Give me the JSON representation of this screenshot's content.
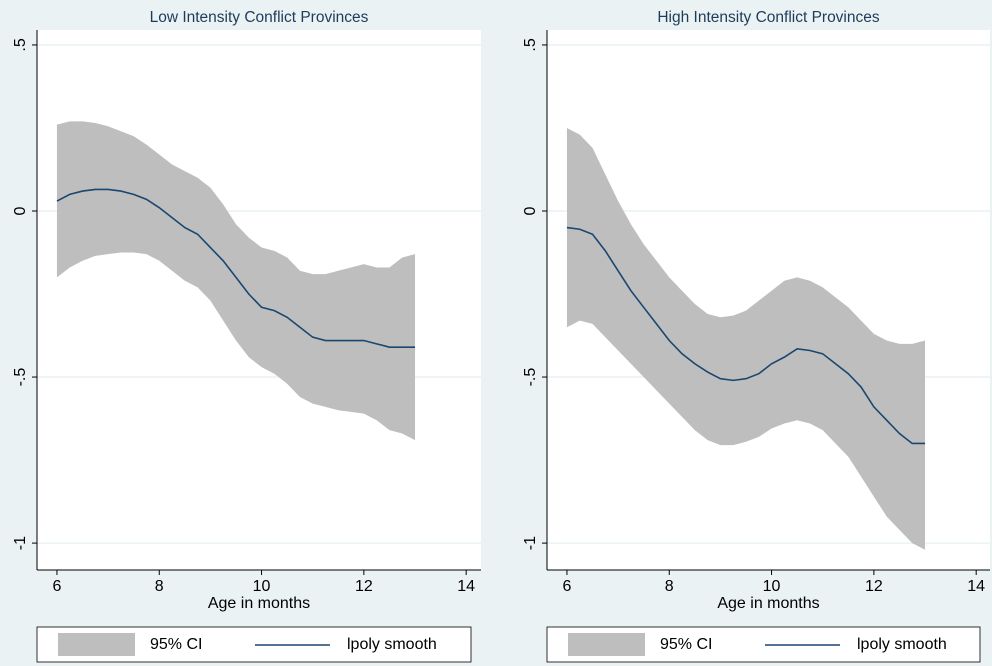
{
  "chart_data": [
    {
      "type": "line",
      "title": "Low Intensity Conflict Provinces",
      "x_label": "Age in months",
      "x": [
        6,
        6.25,
        6.5,
        6.75,
        7,
        7.25,
        7.5,
        7.75,
        8,
        8.25,
        8.5,
        8.75,
        9,
        9.25,
        9.5,
        9.75,
        10,
        10.25,
        10.5,
        10.75,
        11,
        11.25,
        11.5,
        11.75,
        12,
        12.25,
        12.5,
        12.75,
        13
      ],
      "series": [
        {
          "name": "95% CI",
          "color": "#bebebe",
          "upper": [
            0.26,
            0.27,
            0.27,
            0.265,
            0.255,
            0.24,
            0.225,
            0.2,
            0.17,
            0.14,
            0.12,
            0.1,
            0.07,
            0.02,
            -0.04,
            -0.08,
            -0.11,
            -0.12,
            -0.14,
            -0.18,
            -0.19,
            -0.19,
            -0.18,
            -0.17,
            -0.16,
            -0.17,
            -0.17,
            -0.14,
            -0.13
          ],
          "lower": [
            -0.2,
            -0.17,
            -0.15,
            -0.135,
            -0.13,
            -0.125,
            -0.125,
            -0.13,
            -0.15,
            -0.18,
            -0.21,
            -0.23,
            -0.27,
            -0.33,
            -0.39,
            -0.44,
            -0.47,
            -0.49,
            -0.52,
            -0.56,
            -0.58,
            -0.59,
            -0.6,
            -0.605,
            -0.61,
            -0.63,
            -0.66,
            -0.67,
            -0.69
          ]
        },
        {
          "name": "lpoly smooth",
          "color": "#1a476f",
          "values": [
            0.03,
            0.05,
            0.06,
            0.065,
            0.065,
            0.06,
            0.05,
            0.035,
            0.01,
            -0.02,
            -0.05,
            -0.07,
            -0.11,
            -0.15,
            -0.2,
            -0.25,
            -0.29,
            -0.3,
            -0.32,
            -0.35,
            -0.38,
            -0.39,
            -0.39,
            -0.39,
            -0.39,
            -0.4,
            -0.41,
            -0.41,
            -0.41
          ]
        }
      ],
      "xlim": [
        5.61,
        14.29
      ],
      "xticks": [
        6,
        8,
        10,
        12,
        14
      ],
      "ylim": [
        -1.081,
        0.545
      ],
      "yticks": [
        {
          "value": 0.5,
          "label": ".5"
        },
        0,
        {
          "value": -0.5,
          "label": "-.5"
        },
        -1
      ],
      "grid": true
    },
    {
      "type": "line",
      "title": "High  Intensity Conflict Provinces",
      "x_label": "Age in months",
      "x": [
        6,
        6.25,
        6.5,
        6.75,
        7,
        7.25,
        7.5,
        7.75,
        8,
        8.25,
        8.5,
        8.75,
        9,
        9.25,
        9.5,
        9.75,
        10,
        10.25,
        10.5,
        10.75,
        11,
        11.25,
        11.5,
        11.75,
        12,
        12.25,
        12.5,
        12.75,
        13
      ],
      "series": [
        {
          "name": "95% CI",
          "color": "#bebebe",
          "upper": [
            0.25,
            0.23,
            0.19,
            0.11,
            0.03,
            -0.04,
            -0.1,
            -0.15,
            -0.2,
            -0.24,
            -0.28,
            -0.31,
            -0.32,
            -0.315,
            -0.3,
            -0.27,
            -0.24,
            -0.21,
            -0.2,
            -0.21,
            -0.23,
            -0.26,
            -0.29,
            -0.33,
            -0.37,
            -0.39,
            -0.4,
            -0.4,
            -0.39
          ],
          "lower": [
            -0.35,
            -0.33,
            -0.34,
            -0.38,
            -0.42,
            -0.46,
            -0.5,
            -0.54,
            -0.58,
            -0.62,
            -0.66,
            -0.69,
            -0.705,
            -0.705,
            -0.695,
            -0.68,
            -0.655,
            -0.64,
            -0.63,
            -0.64,
            -0.66,
            -0.7,
            -0.74,
            -0.8,
            -0.86,
            -0.92,
            -0.96,
            -1,
            -1.02
          ]
        },
        {
          "name": "lpoly smooth",
          "color": "#1a476f",
          "values": [
            -0.05,
            -0.055,
            -0.07,
            -0.12,
            -0.18,
            -0.24,
            -0.29,
            -0.34,
            -0.39,
            -0.43,
            -0.46,
            -0.485,
            -0.505,
            -0.51,
            -0.505,
            -0.49,
            -0.46,
            -0.44,
            -0.415,
            -0.42,
            -0.43,
            -0.46,
            -0.49,
            -0.53,
            -0.59,
            -0.63,
            -0.67,
            -0.7,
            -0.7
          ]
        }
      ],
      "xlim": [
        5.61,
        14.27
      ],
      "xticks": [
        6,
        8,
        10,
        12,
        14
      ],
      "ylim": [
        -1.081,
        0.545
      ],
      "yticks": [
        {
          "value": 0.5,
          "label": ".5"
        },
        0,
        {
          "value": -0.5,
          "label": "-.5"
        },
        -1
      ],
      "grid": true
    }
  ]
}
